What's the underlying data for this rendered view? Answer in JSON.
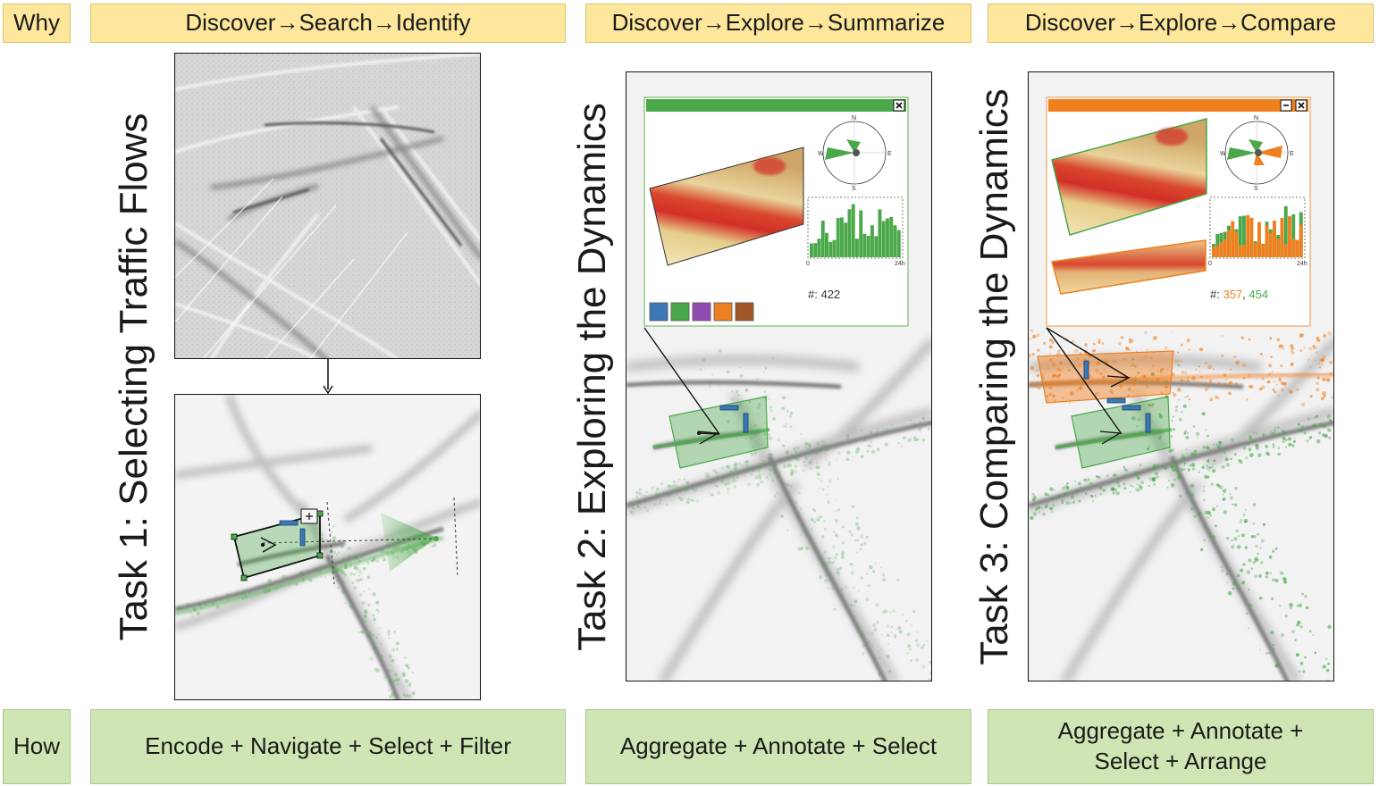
{
  "header": {
    "why_label": "Why",
    "task1": "Discover→Search→Identify",
    "task2": "Discover→Explore→Summarize",
    "task3": "Discover→Explore→Compare"
  },
  "footer": {
    "how_label": "How",
    "task1": "Encode + Navigate + Select + Filter",
    "task2": "Aggregate + Annotate + Select",
    "task3_line1": "Aggregate + Annotate +",
    "task3_line2": "Select + Arrange"
  },
  "titles": {
    "task1": "Task 1: Selecting Traffic Flows",
    "task2": "Task 2: Exploring the Dynamics",
    "task3": "Task 3: Comparing the Dynamics"
  },
  "task2_widget": {
    "count_prefix": "#: ",
    "count": "422",
    "compass": {
      "n": "N",
      "e": "E",
      "s": "S",
      "w": "W"
    },
    "hist_axis_start": "0",
    "hist_axis_end": "24h",
    "swatches": [
      "#3a78b6",
      "#4aa84a",
      "#8f4bb0",
      "#ef7f23",
      "#a25626"
    ]
  },
  "task3_widget": {
    "count_prefix": "#: ",
    "count_orange": "357",
    "count_sep": ", ",
    "count_green": "454",
    "compass": {
      "n": "N",
      "e": "E",
      "s": "S",
      "w": "W"
    },
    "hist_axis_start": "0",
    "hist_axis_end": "24h"
  },
  "colors": {
    "why_bg": "#fde79c",
    "how_bg": "#cfe6b4",
    "green": "#4aa84a",
    "orange": "#f07f1e",
    "heat_red": "#d32f27",
    "heat_tan": "#e8cf8e"
  }
}
